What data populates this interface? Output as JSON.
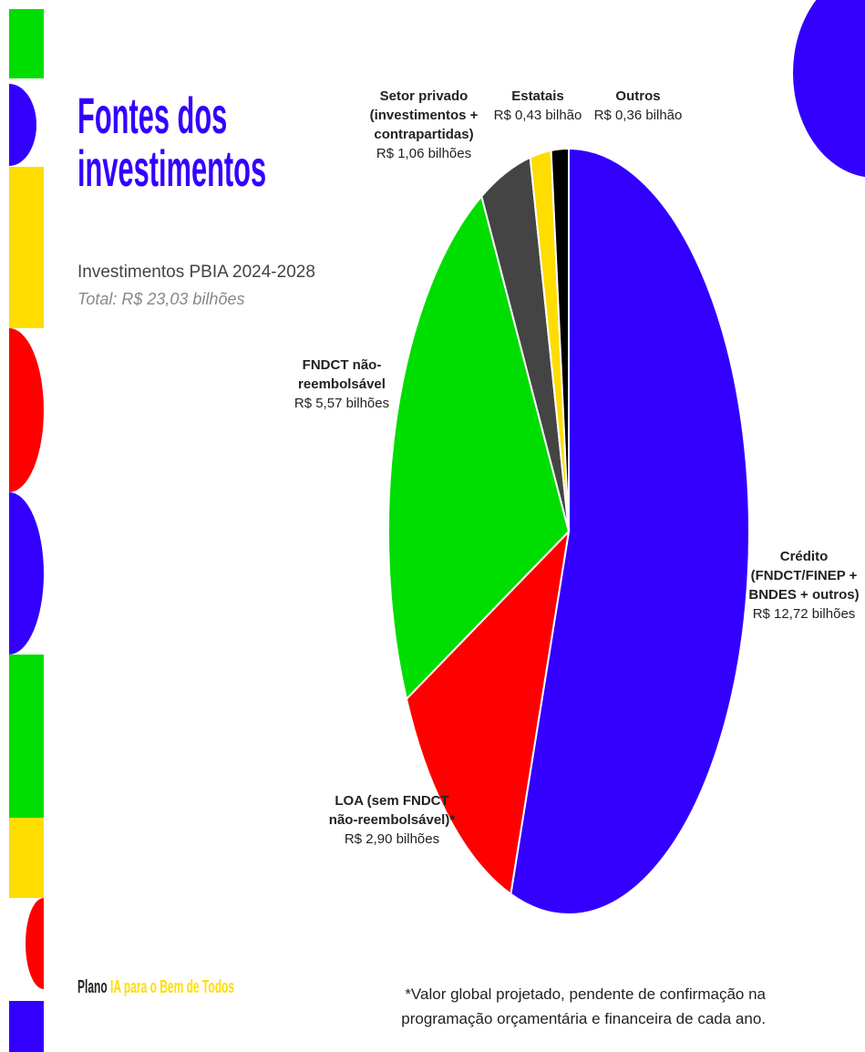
{
  "header": {
    "title": "Fontes dos investimentos",
    "subtitle": "Investimentos PBIA 2024-2028",
    "total": "Total: R$ 23,03 bilhões"
  },
  "chart_data": {
    "type": "pie",
    "categories": [
      "Crédito (FNDCT/FINEP + BNDES + outros)",
      "LOA (sem FNDCT não-reembolsável)*",
      "FNDCT não-reembolsável",
      "Setor privado (investimentos + contrapartidas)",
      "Estatais",
      "Outros"
    ],
    "values": [
      12.72,
      2.9,
      5.57,
      1.06,
      0.43,
      0.36
    ],
    "value_labels": [
      "R$ 12,72 bilhões",
      "R$ 2,90 bilhões",
      "R$ 5,57 bilhões",
      "R$ 1,06 bilhões",
      "R$ 0,43 bilhão",
      "R$ 0,36 bilhão"
    ],
    "colors": [
      "#3300ff",
      "#ff0000",
      "#00dd00",
      "#444444",
      "#ffdd00",
      "#000000"
    ]
  },
  "footnote": "*Valor global projetado, pendente de confirmação na programação orçamentária e financeira de cada ano.",
  "footer": {
    "prefix": "Plano",
    "name": "IA para o Bem de Todos"
  }
}
